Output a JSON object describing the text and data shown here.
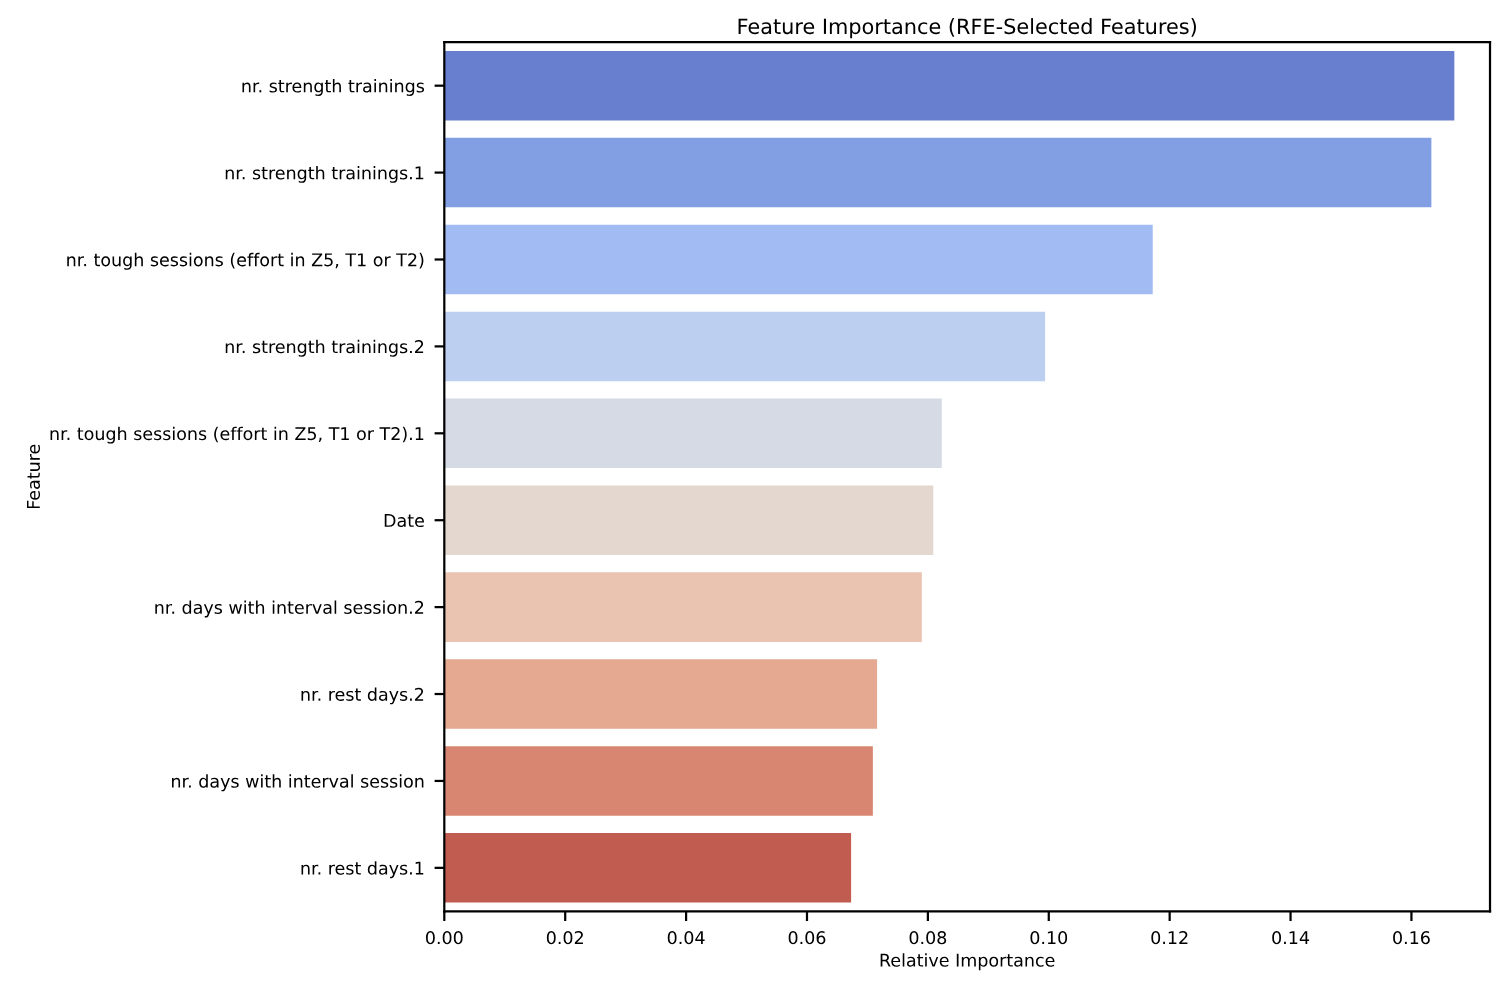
{
  "chart_data": {
    "type": "bar",
    "orientation": "horizontal",
    "title": "Feature Importance (RFE-Selected Features)",
    "xlabel": "Relative Importance",
    "ylabel": "Feature",
    "categories": [
      "nr. strength trainings",
      "nr. strength trainings.1",
      "nr. tough sessions (effort in Z5, T1 or T2)",
      "nr. strength trainings.2",
      "nr. tough sessions (effort in Z5, T1 or T2).1",
      "Date",
      "nr. days with interval session.2",
      "nr. rest days.2",
      "nr. days with interval session",
      "nr. rest days.1"
    ],
    "values": [
      0.1671,
      0.1633,
      0.1172,
      0.0994,
      0.0823,
      0.0809,
      0.079,
      0.0716,
      0.0709,
      0.0673
    ],
    "colors": [
      "#687ecf",
      "#839fe3",
      "#a2bbf2",
      "#bdcff0",
      "#d5dae5",
      "#e3d7cf",
      "#eac4b1",
      "#e5a890",
      "#d88671",
      "#c15c51"
    ],
    "xlim": [
      0,
      0.173
    ],
    "xticks": [
      {
        "value": 0,
        "label": "0.00"
      },
      {
        "value": 0.02,
        "label": "0.02"
      },
      {
        "value": 0.04,
        "label": "0.04"
      },
      {
        "value": 0.06,
        "label": "0.06"
      },
      {
        "value": 0.08,
        "label": "0.08"
      },
      {
        "value": 0.1,
        "label": "0.10"
      },
      {
        "value": 0.12,
        "label": "0.12"
      },
      {
        "value": 0.14,
        "label": "0.14"
      },
      {
        "value": 0.16,
        "label": "0.16"
      }
    ],
    "grid": false,
    "legend": false
  }
}
